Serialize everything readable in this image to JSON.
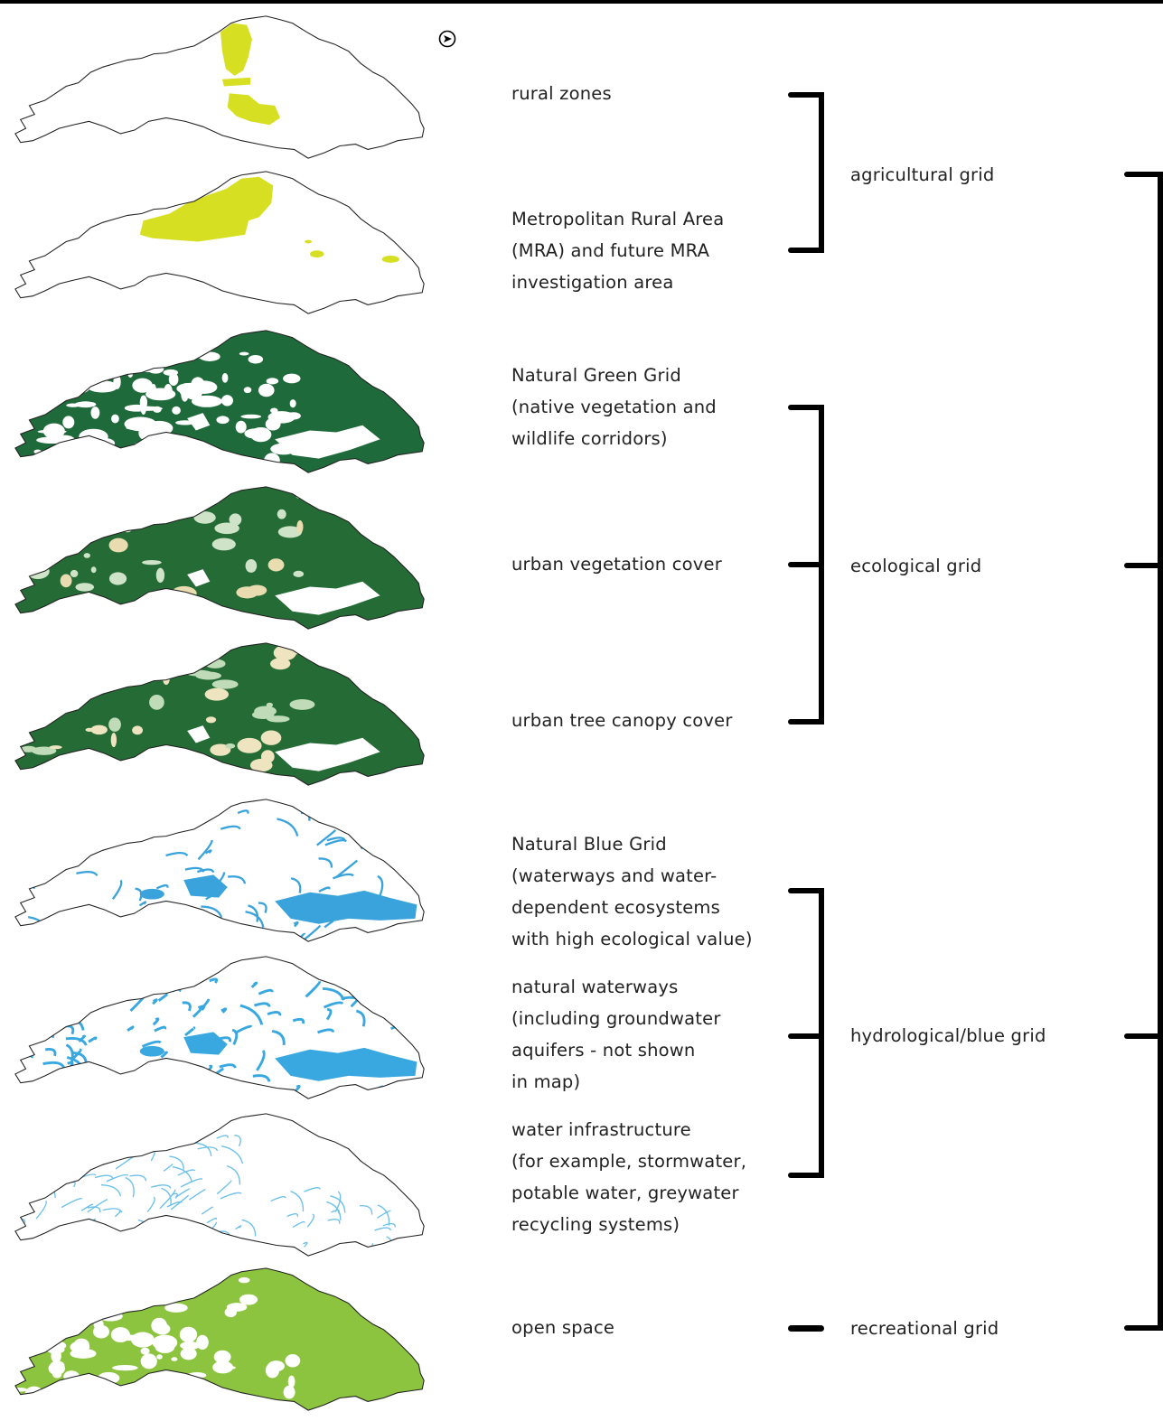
{
  "layers": [
    {
      "label": "rural zones",
      "style": "rural",
      "color": "#d7df23"
    },
    {
      "label": "Metropolitan Rural Area\n(MRA) and future MRA\ninvestigation area",
      "style": "mra",
      "color": "#d7df23"
    },
    {
      "label": "Natural Green Grid\n(native vegetation and\nwildlife corridors)",
      "style": "green-grid",
      "color": "#1f6a3a"
    },
    {
      "label": "urban vegetation cover",
      "style": "veg",
      "color": "#256b35"
    },
    {
      "label": "urban tree canopy cover",
      "style": "canopy",
      "color": "#256b35"
    },
    {
      "label": "Natural Blue Grid\n(waterways and water-\ndependent ecosystems\nwith high ecological value)",
      "style": "blue-grid",
      "color": "#3aa3dc"
    },
    {
      "label": "natural waterways\n(including groundwater\naquifers - not shown\nin map)",
      "style": "waterways",
      "color": "#3aa8e0"
    },
    {
      "label": "water infrastructure\n(for example, stormwater,\npotable water, greywater\nrecycling systems)",
      "style": "infra",
      "color": "#6cc0ea"
    },
    {
      "label": "open space",
      "style": "open",
      "color": "#8cc43f"
    }
  ],
  "groups": [
    {
      "label": "agricultural grid"
    },
    {
      "label": "ecological grid"
    },
    {
      "label": "hydrological/blue grid"
    },
    {
      "label": "recreational grid"
    }
  ],
  "icons": {
    "compass": "north-arrow-icon"
  }
}
